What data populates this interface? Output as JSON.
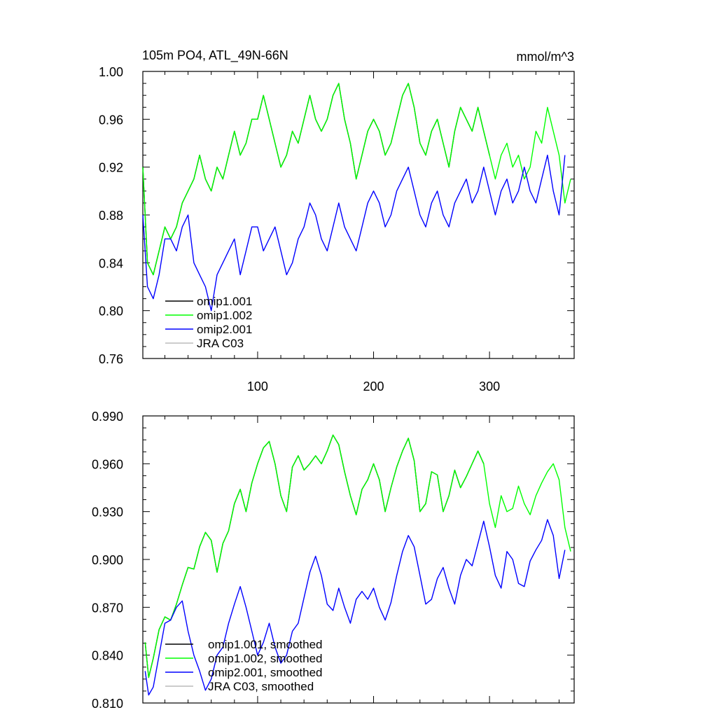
{
  "chart_data": [
    {
      "type": "line",
      "title": "105m PO4, ATL_49N-66N",
      "units_label": "mmol/m^3",
      "xlabel": "",
      "ylabel": "",
      "xlim": [
        1,
        373
      ],
      "ylim": [
        0.76,
        1.0
      ],
      "xticks": [
        100,
        200,
        300
      ],
      "xtick_labels": [
        "100",
        "200",
        "300"
      ],
      "yticks": [
        0.76,
        0.8,
        0.84,
        0.88,
        0.92,
        0.96,
        1.0
      ],
      "ytick_labels": [
        "0.76",
        "0.80",
        "0.84",
        "0.88",
        "0.92",
        "0.96",
        "1.00"
      ],
      "legend_position": "bottom-left",
      "series": [
        {
          "name": "omip1.001",
          "color": "#000000",
          "x": [
            1,
            5,
            10,
            15,
            20,
            25,
            30,
            35,
            40,
            45,
            50,
            55,
            60,
            65,
            70,
            75,
            80,
            85,
            90,
            95,
            100,
            105,
            110,
            115,
            120,
            125,
            130,
            135,
            140,
            145,
            150,
            155,
            160,
            165,
            170,
            175,
            180,
            185,
            190,
            195,
            200,
            205,
            210,
            215,
            220,
            225,
            230,
            235,
            240,
            245,
            250,
            255,
            260,
            265,
            270,
            275,
            280,
            285,
            290,
            295,
            300
          ],
          "y": [
            0.92,
            0.84,
            0.83,
            0.85,
            0.87,
            0.86,
            0.87,
            0.89,
            0.9,
            0.91,
            0.93,
            0.91,
            0.9,
            0.92,
            0.91,
            0.93,
            0.95,
            0.93,
            0.94,
            0.96,
            0.96,
            0.98,
            0.96,
            0.94,
            0.92,
            0.93,
            0.95,
            0.94,
            0.96,
            0.98,
            0.96,
            0.95,
            0.96,
            0.98,
            0.99,
            0.96,
            0.94,
            0.91,
            0.93,
            0.95,
            0.96,
            0.95,
            0.93,
            0.94,
            0.96,
            0.98,
            0.99,
            0.97,
            0.94,
            0.93,
            0.95,
            0.96,
            0.94,
            0.92,
            0.95,
            0.97,
            0.96,
            0.95,
            0.97,
            0.95,
            0.93
          ]
        },
        {
          "name": "omip1.002",
          "color": "#00ff00",
          "x": [
            1,
            5,
            10,
            15,
            20,
            25,
            30,
            35,
            40,
            45,
            50,
            55,
            60,
            65,
            70,
            75,
            80,
            85,
            90,
            95,
            100,
            105,
            110,
            115,
            120,
            125,
            130,
            135,
            140,
            145,
            150,
            155,
            160,
            165,
            170,
            175,
            180,
            185,
            190,
            195,
            200,
            205,
            210,
            215,
            220,
            225,
            230,
            235,
            240,
            245,
            250,
            255,
            260,
            265,
            270,
            275,
            280,
            285,
            290,
            295,
            300,
            305,
            310,
            315,
            320,
            325,
            330,
            335,
            340,
            345,
            350,
            355,
            360,
            365,
            370
          ],
          "y": [
            0.92,
            0.84,
            0.83,
            0.85,
            0.87,
            0.86,
            0.87,
            0.89,
            0.9,
            0.91,
            0.93,
            0.91,
            0.9,
            0.92,
            0.91,
            0.93,
            0.95,
            0.93,
            0.94,
            0.96,
            0.96,
            0.98,
            0.96,
            0.94,
            0.92,
            0.93,
            0.95,
            0.94,
            0.96,
            0.98,
            0.96,
            0.95,
            0.96,
            0.98,
            0.99,
            0.96,
            0.94,
            0.91,
            0.93,
            0.95,
            0.96,
            0.95,
            0.93,
            0.94,
            0.96,
            0.98,
            0.99,
            0.97,
            0.94,
            0.93,
            0.95,
            0.96,
            0.94,
            0.92,
            0.95,
            0.97,
            0.96,
            0.95,
            0.97,
            0.95,
            0.93,
            0.91,
            0.93,
            0.94,
            0.92,
            0.93,
            0.91,
            0.92,
            0.95,
            0.94,
            0.97,
            0.95,
            0.93,
            0.89,
            0.91
          ]
        },
        {
          "name": "omip2.001",
          "color": "#0000ff",
          "x": [
            1,
            5,
            10,
            15,
            20,
            25,
            30,
            35,
            40,
            45,
            50,
            55,
            60,
            65,
            70,
            75,
            80,
            85,
            90,
            95,
            100,
            105,
            110,
            115,
            120,
            125,
            130,
            135,
            140,
            145,
            150,
            155,
            160,
            165,
            170,
            175,
            180,
            185,
            190,
            195,
            200,
            205,
            210,
            215,
            220,
            225,
            230,
            235,
            240,
            245,
            250,
            255,
            260,
            265,
            270,
            275,
            280,
            285,
            290,
            295,
            300,
            305,
            310,
            315,
            320,
            325,
            330,
            335,
            340,
            345,
            350,
            355,
            360,
            365
          ],
          "y": [
            0.88,
            0.82,
            0.81,
            0.83,
            0.86,
            0.86,
            0.85,
            0.87,
            0.88,
            0.84,
            0.83,
            0.82,
            0.8,
            0.83,
            0.84,
            0.85,
            0.86,
            0.83,
            0.85,
            0.87,
            0.87,
            0.85,
            0.86,
            0.87,
            0.85,
            0.83,
            0.84,
            0.86,
            0.87,
            0.89,
            0.88,
            0.86,
            0.85,
            0.87,
            0.89,
            0.87,
            0.86,
            0.85,
            0.87,
            0.89,
            0.9,
            0.89,
            0.87,
            0.88,
            0.9,
            0.91,
            0.92,
            0.9,
            0.88,
            0.87,
            0.89,
            0.9,
            0.88,
            0.87,
            0.89,
            0.9,
            0.91,
            0.89,
            0.9,
            0.92,
            0.9,
            0.88,
            0.9,
            0.91,
            0.89,
            0.9,
            0.92,
            0.9,
            0.89,
            0.91,
            0.93,
            0.9,
            0.88,
            0.93
          ]
        },
        {
          "name": "JRA C03",
          "color": "#bbbbbb",
          "x": [],
          "y": []
        }
      ]
    },
    {
      "type": "line",
      "title": "",
      "xlabel": "",
      "ylabel": "",
      "xlim": [
        1,
        373
      ],
      "ylim": [
        0.81,
        0.99
      ],
      "xticks": [
        100,
        200,
        300
      ],
      "yticks": [
        0.81,
        0.84,
        0.87,
        0.9,
        0.93,
        0.96,
        0.99
      ],
      "ytick_labels": [
        "0.810",
        "0.840",
        "0.870",
        "0.900",
        "0.930",
        "0.960",
        "0.990"
      ],
      "legend_position": "bottom-left",
      "series": [
        {
          "name": "omip1.001, smoothed",
          "color": "#000000",
          "x": [
            3,
            6,
            10,
            15,
            20,
            25,
            30,
            35,
            40,
            45,
            50,
            55,
            60,
            65,
            70,
            75,
            80,
            85,
            90,
            95,
            100,
            105,
            110,
            115,
            120,
            125,
            130,
            135,
            140,
            145,
            150,
            155,
            160,
            165,
            170,
            175,
            180,
            185,
            190,
            195,
            200,
            205,
            210,
            215,
            220,
            225,
            230,
            235,
            240,
            245,
            250,
            255,
            260,
            265,
            270,
            275,
            280,
            285,
            290,
            295
          ],
          "y": [
            0.848,
            0.826,
            0.838,
            0.856,
            0.864,
            0.862,
            0.872,
            0.884,
            0.895,
            0.894,
            0.908,
            0.917,
            0.912,
            0.892,
            0.91,
            0.918,
            0.935,
            0.944,
            0.93,
            0.948,
            0.96,
            0.97,
            0.974,
            0.96,
            0.94,
            0.93,
            0.958,
            0.965,
            0.956,
            0.96,
            0.965,
            0.96,
            0.968,
            0.978,
            0.972,
            0.955,
            0.94,
            0.928,
            0.944,
            0.95,
            0.96,
            0.95,
            0.93,
            0.945,
            0.958,
            0.968,
            0.976,
            0.962,
            0.93,
            0.935,
            0.955,
            0.953,
            0.93,
            0.94,
            0.956,
            0.945,
            0.952,
            0.96,
            0.968,
            0.96
          ]
        },
        {
          "name": "omip1.002, smoothed",
          "color": "#00ff00",
          "x": [
            3,
            6,
            10,
            15,
            20,
            25,
            30,
            35,
            40,
            45,
            50,
            55,
            60,
            65,
            70,
            75,
            80,
            85,
            90,
            95,
            100,
            105,
            110,
            115,
            120,
            125,
            130,
            135,
            140,
            145,
            150,
            155,
            160,
            165,
            170,
            175,
            180,
            185,
            190,
            195,
            200,
            205,
            210,
            215,
            220,
            225,
            230,
            235,
            240,
            245,
            250,
            255,
            260,
            265,
            270,
            275,
            280,
            285,
            290,
            295,
            300,
            305,
            310,
            315,
            320,
            325,
            330,
            335,
            340,
            345,
            350,
            355,
            360,
            365,
            370
          ],
          "y": [
            0.848,
            0.826,
            0.838,
            0.856,
            0.864,
            0.862,
            0.872,
            0.884,
            0.895,
            0.894,
            0.908,
            0.917,
            0.912,
            0.892,
            0.91,
            0.918,
            0.935,
            0.944,
            0.93,
            0.948,
            0.96,
            0.97,
            0.974,
            0.96,
            0.94,
            0.93,
            0.958,
            0.965,
            0.956,
            0.96,
            0.965,
            0.96,
            0.968,
            0.978,
            0.972,
            0.955,
            0.94,
            0.928,
            0.944,
            0.95,
            0.96,
            0.95,
            0.93,
            0.945,
            0.958,
            0.968,
            0.976,
            0.962,
            0.93,
            0.935,
            0.955,
            0.953,
            0.93,
            0.94,
            0.956,
            0.945,
            0.952,
            0.96,
            0.968,
            0.96,
            0.935,
            0.92,
            0.94,
            0.93,
            0.932,
            0.946,
            0.935,
            0.928,
            0.94,
            0.948,
            0.955,
            0.96,
            0.95,
            0.92,
            0.905
          ]
        },
        {
          "name": "omip2.001, smoothed",
          "color": "#0000ff",
          "x": [
            3,
            6,
            10,
            15,
            20,
            25,
            30,
            35,
            40,
            45,
            50,
            55,
            60,
            65,
            70,
            75,
            80,
            85,
            90,
            95,
            100,
            105,
            110,
            115,
            120,
            125,
            130,
            135,
            140,
            145,
            150,
            155,
            160,
            165,
            170,
            175,
            180,
            185,
            190,
            195,
            200,
            205,
            210,
            215,
            220,
            225,
            230,
            235,
            240,
            245,
            250,
            255,
            260,
            265,
            270,
            275,
            280,
            285,
            290,
            295,
            300,
            305,
            310,
            315,
            320,
            325,
            330,
            335,
            340,
            345,
            350,
            355,
            360,
            365
          ],
          "y": [
            0.83,
            0.815,
            0.82,
            0.84,
            0.86,
            0.862,
            0.87,
            0.874,
            0.855,
            0.84,
            0.83,
            0.818,
            0.825,
            0.84,
            0.845,
            0.86,
            0.872,
            0.883,
            0.87,
            0.855,
            0.84,
            0.848,
            0.86,
            0.845,
            0.835,
            0.84,
            0.855,
            0.86,
            0.876,
            0.892,
            0.902,
            0.89,
            0.872,
            0.868,
            0.882,
            0.87,
            0.86,
            0.875,
            0.88,
            0.875,
            0.882,
            0.87,
            0.862,
            0.873,
            0.89,
            0.905,
            0.915,
            0.908,
            0.89,
            0.872,
            0.875,
            0.888,
            0.895,
            0.882,
            0.872,
            0.89,
            0.9,
            0.896,
            0.91,
            0.924,
            0.908,
            0.89,
            0.882,
            0.905,
            0.9,
            0.885,
            0.883,
            0.899,
            0.906,
            0.912,
            0.925,
            0.915,
            0.888,
            0.906
          ]
        },
        {
          "name": "JRA C03, smoothed",
          "color": "#bbbbbb",
          "x": [],
          "y": []
        }
      ]
    }
  ]
}
